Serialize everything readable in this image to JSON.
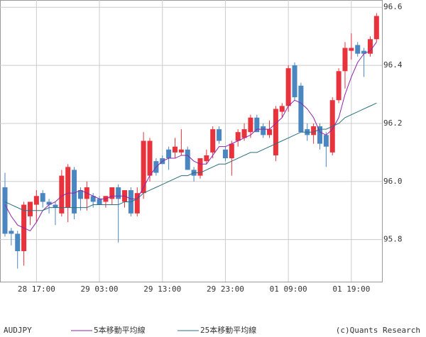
{
  "chart_data": {
    "type": "candlestick",
    "symbol": "AUDJPY",
    "credit": "(c)Quants Research",
    "categories": [
      null,
      null,
      null,
      null,
      null,
      "28 17:00",
      null,
      null,
      null,
      null,
      null,
      null,
      null,
      null,
      null,
      "29 03:00",
      null,
      null,
      null,
      null,
      null,
      null,
      null,
      null,
      null,
      "29 13:00",
      null,
      null,
      null,
      null,
      null,
      null,
      null,
      null,
      null,
      "29 23:00",
      null,
      null,
      null,
      null,
      null,
      null,
      null,
      null,
      null,
      "01 09:00",
      null,
      null,
      null,
      null,
      null,
      null,
      null,
      null,
      null,
      "01 19:00",
      null,
      null,
      null,
      null
    ],
    "open": [
      95.98,
      95.83,
      95.82,
      95.76,
      95.88,
      95.92,
      95.96,
      95.93,
      95.92,
      95.89,
      95.91,
      96.04,
      95.97,
      95.94,
      95.95,
      95.94,
      95.93,
      95.94,
      95.98,
      95.93,
      95.97,
      95.89,
      95.96,
      96.02,
      96.07,
      96.08,
      96.11,
      96.1,
      96.1,
      96.11,
      96.04,
      96.02,
      96.07,
      96.1,
      96.18,
      96.11,
      96.08,
      96.14,
      96.15,
      96.17,
      96.22,
      96.19,
      96.16,
      96.09,
      96.24,
      96.26,
      96.4,
      96.33,
      96.18,
      96.16,
      96.19,
      96.16,
      96.1,
      96.28,
      96.38,
      96.45,
      96.47,
      96.45,
      96.44,
      96.49
    ],
    "high": [
      96.03,
      95.84,
      95.83,
      95.93,
      95.93,
      95.97,
      95.97,
      95.94,
      95.93,
      96.04,
      96.06,
      96.05,
      95.98,
      96.0,
      95.96,
      95.95,
      95.95,
      95.98,
      95.99,
      95.97,
      95.98,
      95.98,
      96.17,
      96.15,
      96.08,
      96.09,
      96.12,
      96.15,
      96.18,
      96.12,
      96.05,
      96.08,
      96.11,
      96.19,
      96.19,
      96.12,
      96.14,
      96.18,
      96.2,
      96.23,
      96.23,
      96.2,
      96.21,
      96.26,
      96.27,
      96.4,
      96.41,
      96.34,
      96.2,
      96.2,
      96.2,
      96.17,
      96.29,
      96.39,
      96.48,
      96.51,
      96.48,
      96.46,
      96.5,
      96.58
    ],
    "low": [
      95.81,
      95.78,
      95.7,
      95.71,
      95.85,
      95.86,
      95.91,
      95.89,
      95.85,
      95.88,
      95.86,
      95.87,
      95.9,
      95.9,
      95.91,
      95.92,
      95.91,
      95.92,
      95.79,
      95.91,
      95.88,
      95.88,
      95.94,
      96.0,
      96.02,
      96.06,
      96.04,
      96.08,
      96.09,
      96.04,
      96.0,
      96.01,
      96.06,
      96.08,
      96.13,
      96.07,
      96.02,
      96.12,
      96.14,
      96.15,
      96.17,
      96.15,
      96.15,
      96.07,
      96.22,
      96.24,
      96.28,
      96.17,
      96.14,
      96.13,
      96.11,
      96.05,
      96.09,
      96.27,
      96.32,
      96.42,
      96.43,
      96.36,
      96.43,
      96.48
    ],
    "close": [
      95.82,
      95.82,
      95.76,
      95.92,
      95.93,
      95.95,
      95.93,
      95.92,
      95.91,
      96.02,
      96.05,
      95.89,
      95.94,
      95.98,
      95.93,
      95.92,
      95.95,
      95.98,
      95.94,
      95.97,
      95.89,
      95.96,
      96.14,
      96.14,
      96.03,
      96.06,
      96.08,
      96.12,
      96.11,
      96.04,
      96.02,
      96.08,
      96.09,
      96.18,
      96.14,
      96.08,
      96.13,
      96.17,
      96.18,
      96.22,
      96.17,
      96.16,
      96.18,
      96.25,
      96.26,
      96.39,
      96.29,
      96.17,
      96.16,
      96.19,
      96.13,
      96.12,
      96.28,
      96.38,
      96.46,
      96.46,
      96.44,
      96.44,
      96.49,
      96.57
    ],
    "up_color": "#e8323c",
    "down_color": "#4a86c0",
    "series": [
      {
        "name": "5本移動平均線",
        "color": "#8e24aa",
        "values": [
          95.92,
          95.88,
          95.85,
          95.84,
          95.83,
          95.86,
          95.9,
          95.92,
          95.93,
          95.95,
          95.96,
          95.96,
          95.97,
          95.96,
          95.95,
          95.94,
          95.94,
          95.95,
          95.95,
          95.95,
          95.94,
          95.94,
          95.98,
          96.02,
          96.05,
          96.07,
          96.08,
          96.08,
          96.09,
          96.09,
          96.07,
          96.06,
          96.06,
          96.09,
          96.12,
          96.12,
          96.13,
          96.14,
          96.15,
          96.16,
          96.18,
          96.18,
          96.18,
          96.2,
          96.22,
          96.26,
          96.28,
          96.27,
          96.25,
          96.22,
          96.17,
          96.16,
          96.18,
          96.22,
          96.3,
          96.36,
          96.41,
          96.44,
          96.45,
          96.48
        ]
      },
      {
        "name": "25本移動平均線",
        "color": "#2b6f80",
        "values": [
          95.93,
          95.92,
          95.91,
          95.9,
          95.9,
          95.9,
          95.9,
          95.91,
          95.91,
          95.91,
          95.91,
          95.91,
          95.91,
          95.91,
          95.92,
          95.92,
          95.92,
          95.92,
          95.92,
          95.93,
          95.93,
          95.94,
          95.96,
          95.97,
          95.98,
          95.99,
          96.0,
          96.01,
          96.02,
          96.02,
          96.03,
          96.03,
          96.04,
          96.05,
          96.06,
          96.06,
          96.07,
          96.08,
          96.09,
          96.1,
          96.1,
          96.11,
          96.12,
          96.13,
          96.14,
          96.15,
          96.16,
          96.17,
          96.17,
          96.17,
          96.18,
          96.18,
          96.19,
          96.2,
          96.22,
          96.23,
          96.24,
          96.25,
          96.26,
          96.27
        ]
      }
    ],
    "ylim": [
      95.655,
      96.625
    ],
    "yticks": [
      95.8,
      {
        "value": 96,
        "label": "96.0"
      },
      96.2,
      96.4,
      96.6
    ],
    "grid": true
  }
}
